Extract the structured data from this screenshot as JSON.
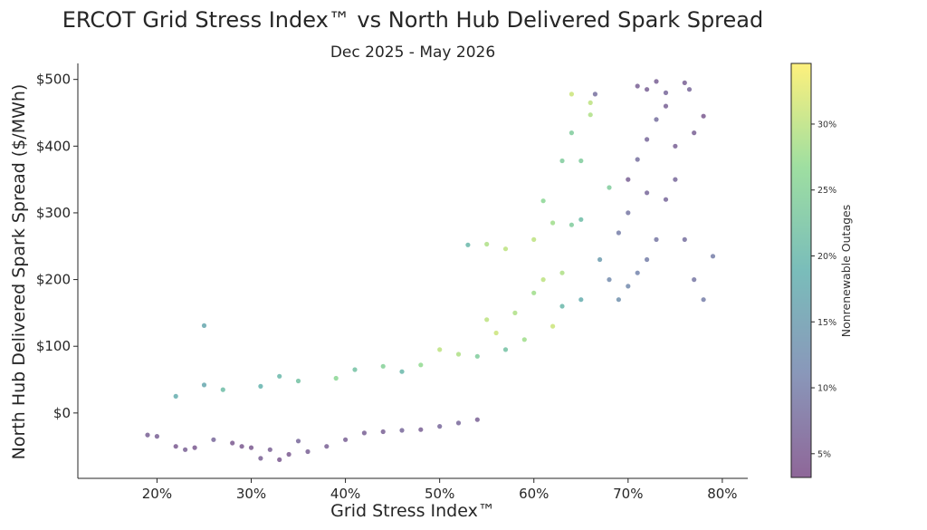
{
  "title": "ERCOT Grid Stress Index™ vs North Hub Delivered Spark Spread",
  "subtitle": "Dec 2025 - May 2026",
  "chart_data": {
    "type": "scatter",
    "title": "ERCOT Grid Stress Index™ vs North Hub Delivered Spark Spread",
    "subtitle": "Dec 2025 - May 2026",
    "xlabel": "Grid Stress Index™",
    "ylabel": "North Hub Delivered Spark Spread ($/MWh)",
    "xlim": [
      11.6,
      82.7
    ],
    "ylim": [
      -98,
      524
    ],
    "x_ticks": [
      20,
      30,
      40,
      50,
      60,
      70,
      80
    ],
    "x_tick_labels": [
      "20%",
      "30%",
      "40%",
      "50%",
      "60%",
      "70%",
      "80%"
    ],
    "y_ticks": [
      0,
      100,
      200,
      300,
      400,
      500
    ],
    "y_tick_labels": [
      "$0",
      "$100",
      "$200",
      "$300",
      "$400",
      "$500"
    ],
    "grid": false,
    "colorbar": {
      "label": "Nonrenewable Outages",
      "range": [
        3.2,
        34.6
      ],
      "ticks": [
        5,
        10,
        15,
        20,
        25,
        30
      ],
      "tick_labels": [
        "5%",
        "10%",
        "15%",
        "20%",
        "25%",
        "30%"
      ],
      "colormap": "viridis",
      "colors": [
        "#440154",
        "#3b528b",
        "#21918c",
        "#5ec962",
        "#fde725"
      ]
    },
    "points": [
      [
        25,
        131,
        17
      ],
      [
        66.5,
        478,
        8
      ],
      [
        71,
        490,
        6
      ],
      [
        72,
        485,
        6
      ],
      [
        73,
        497,
        6
      ],
      [
        74,
        480,
        7
      ],
      [
        76,
        495,
        6
      ],
      [
        76.5,
        485,
        7
      ],
      [
        64,
        478,
        31
      ],
      [
        66,
        465,
        30
      ],
      [
        66,
        447,
        29
      ],
      [
        64,
        420,
        24
      ],
      [
        63,
        378,
        24
      ],
      [
        65,
        378,
        24
      ],
      [
        68,
        338,
        24
      ],
      [
        61,
        318,
        26
      ],
      [
        53,
        252,
        20
      ],
      [
        55,
        253,
        29
      ],
      [
        60,
        260,
        30
      ],
      [
        62,
        285,
        28
      ],
      [
        64,
        282,
        24
      ],
      [
        65,
        290,
        21
      ],
      [
        57,
        246,
        30
      ],
      [
        79,
        235,
        10
      ],
      [
        78,
        445,
        5
      ],
      [
        77,
        420,
        6
      ],
      [
        75,
        400,
        6
      ],
      [
        70,
        350,
        6
      ],
      [
        72,
        330,
        7
      ],
      [
        74,
        320,
        7
      ],
      [
        28,
        -45,
        5
      ],
      [
        30,
        -52,
        5
      ],
      [
        32,
        -55,
        6
      ],
      [
        33,
        -70,
        5
      ],
      [
        31,
        -68,
        6
      ],
      [
        29,
        -50,
        5
      ],
      [
        34,
        -62,
        5
      ],
      [
        36,
        -58,
        6
      ],
      [
        38,
        -50,
        6
      ],
      [
        40,
        -40,
        6
      ],
      [
        22,
        -50,
        5
      ],
      [
        23,
        -55,
        6
      ],
      [
        24,
        -52,
        5
      ],
      [
        20,
        -35,
        6
      ],
      [
        19,
        -33,
        6
      ],
      [
        48,
        -25,
        6
      ],
      [
        50,
        -20,
        7
      ],
      [
        52,
        -15,
        7
      ],
      [
        54,
        -10,
        6
      ],
      [
        42,
        -30,
        6
      ],
      [
        44,
        -28,
        6
      ],
      [
        46,
        -26,
        7
      ],
      [
        26,
        -40,
        7
      ],
      [
        35,
        -42,
        7
      ],
      [
        55,
        140,
        30
      ],
      [
        58,
        150,
        29
      ],
      [
        60,
        180,
        28
      ],
      [
        61,
        200,
        30
      ],
      [
        63,
        210,
        29
      ],
      [
        62,
        130,
        31
      ],
      [
        50,
        95,
        30
      ],
      [
        52,
        88,
        29
      ],
      [
        56,
        120,
        31
      ],
      [
        59,
        110,
        28
      ],
      [
        44,
        70,
        25
      ],
      [
        41,
        65,
        22
      ],
      [
        46,
        62,
        20
      ],
      [
        33,
        55,
        20
      ],
      [
        35,
        48,
        22
      ],
      [
        31,
        40,
        19
      ],
      [
        27,
        35,
        21
      ],
      [
        39,
        52,
        26
      ],
      [
        25,
        42,
        17
      ],
      [
        22,
        25,
        18
      ],
      [
        48,
        72,
        27
      ],
      [
        54,
        85,
        24
      ],
      [
        57,
        95,
        22
      ],
      [
        63,
        160,
        20
      ],
      [
        65,
        170,
        18
      ],
      [
        67,
        230,
        15
      ],
      [
        68,
        200,
        12
      ],
      [
        69,
        270,
        10
      ],
      [
        70,
        300,
        9
      ],
      [
        71,
        380,
        8
      ],
      [
        72,
        410,
        7
      ],
      [
        73,
        440,
        8
      ],
      [
        74,
        460,
        6
      ],
      [
        75,
        350,
        7
      ],
      [
        76,
        260,
        8
      ],
      [
        77,
        200,
        9
      ],
      [
        78,
        170,
        10
      ],
      [
        73,
        260,
        9
      ],
      [
        72,
        230,
        10
      ],
      [
        71,
        210,
        11
      ],
      [
        70,
        190,
        12
      ],
      [
        69,
        170,
        13
      ]
    ]
  }
}
